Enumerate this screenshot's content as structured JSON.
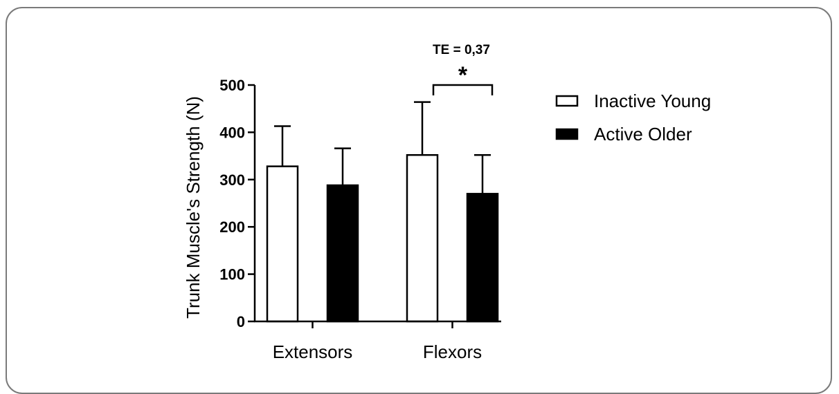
{
  "chart_data": {
    "type": "bar",
    "title": "",
    "xlabel": "",
    "ylabel": "Trunk Muscle's Strength (N)",
    "ylim": [
      0,
      500
    ],
    "yticks": [
      0,
      100,
      200,
      300,
      400,
      500
    ],
    "categories": [
      "Extensors",
      "Flexors"
    ],
    "series": [
      {
        "name": "Inactive Young",
        "values": [
          328,
          352
        ],
        "error": [
          85,
          112
        ],
        "color": "#ffffff"
      },
      {
        "name": "Active Older",
        "values": [
          288,
          270
        ],
        "error": [
          78,
          82
        ],
        "color": "#000000"
      }
    ],
    "legend_position": "right",
    "grid": false,
    "annotations": {
      "effect_label": "TE = 0,37",
      "significance": "*"
    }
  }
}
